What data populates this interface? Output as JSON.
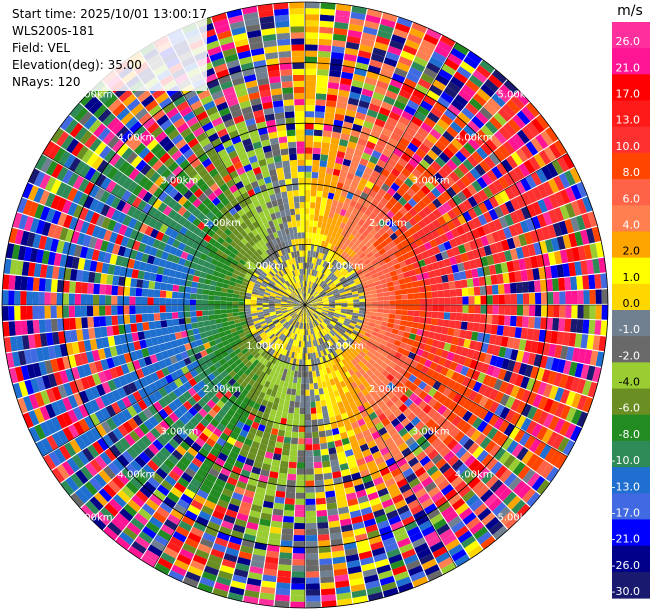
{
  "info": {
    "start_time": "Start time: 2025/10/01 13:00:17",
    "instrument": "WLS200s-181",
    "field": "Field: VEL",
    "elevation": "Elevation(deg): 35.00",
    "nrays": "NRays: 120"
  },
  "chart_data": {
    "type": "heatmap",
    "projection": "polar-ppi",
    "field": "VEL",
    "units": "m/s",
    "elevation_deg": 35.0,
    "n_rays": 120,
    "max_range_km": 5.0,
    "range_rings_km": [
      1,
      2,
      3,
      4,
      5
    ],
    "ring_labels": [
      "1.00km",
      "2.00km",
      "3.00km",
      "4.00km",
      "5.00km"
    ],
    "ring_label_azimuths_deg": [
      45,
      135,
      225,
      315
    ],
    "flow_pattern": {
      "toward_sector_center_deg": 90,
      "away_sector_center_deg": 240,
      "near_range_values": "-2.0 to 2.0",
      "far_range": "noisy"
    },
    "colorbar": {
      "unit_label": "m/s",
      "tick_labels": [
        "26.0",
        "21.0",
        "17.0",
        "13.0",
        "10.0",
        "8.0",
        "6.0",
        "4.0",
        "2.0",
        "1.0",
        "0.0",
        "-1.0",
        "-2.0",
        "-4.0",
        "-6.0",
        "-8.0",
        "-10.0",
        "-13.0",
        "-17.0",
        "-21.0",
        "-26.0",
        "-30.0"
      ],
      "levels": [
        30,
        26,
        21,
        17,
        13,
        10,
        8,
        6,
        4,
        2,
        1,
        0,
        -1,
        -2,
        -4,
        -6,
        -8,
        -10,
        -13,
        -17,
        -21,
        -26,
        -30
      ],
      "colors": [
        "#ff2f9e",
        "#ff1493",
        "#ff0000",
        "#ff1a1a",
        "#ff3030",
        "#ff4500",
        "#ff6347",
        "#ff7f50",
        "#ffa500",
        "#ffff00",
        "#ffd700",
        "#708090",
        "#696969",
        "#9acd32",
        "#6b8e23",
        "#228b22",
        "#2e8b57",
        "#1e6fcf",
        "#4169e1",
        "#0000ff",
        "#00008b",
        "#191970"
      ]
    }
  }
}
